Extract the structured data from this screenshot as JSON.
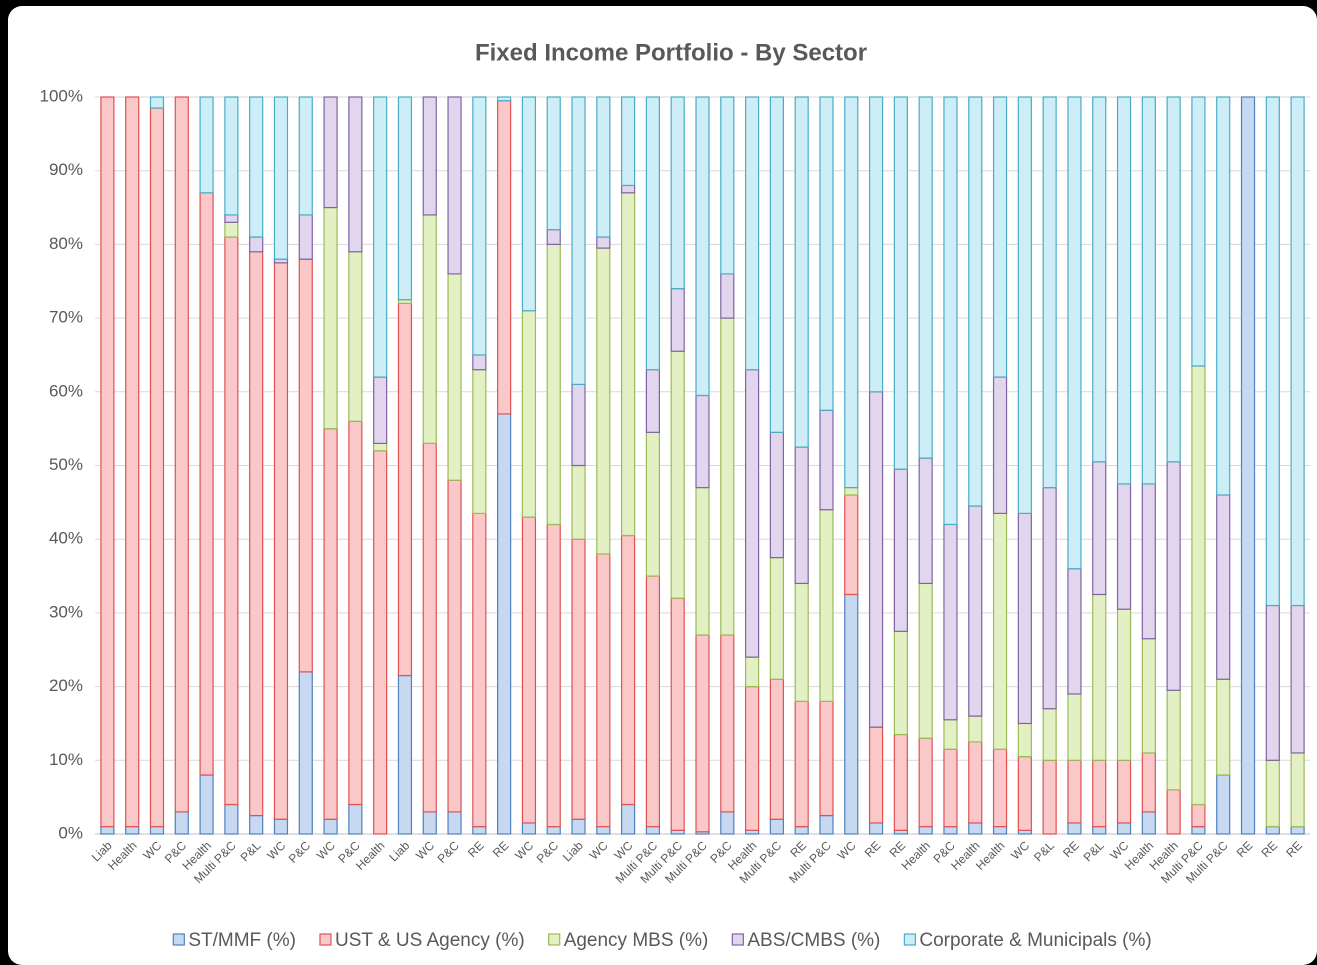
{
  "chart_data": {
    "type": "stacked_bar",
    "title": "Fixed Income Portfolio - By Sector",
    "categories": [
      "Liab",
      "Health",
      "WC",
      "P&C",
      "Health",
      "Multi P&C",
      "P&L",
      "WC",
      "P&C",
      "WC",
      "P&C",
      "Health",
      "Liab",
      "WC",
      "P&C",
      "RE",
      "RE",
      "WC",
      "P&C",
      "Liab",
      "WC",
      "WC",
      "Multi P&C",
      "Multi P&C",
      "Multi P&C",
      "P&C",
      "Health",
      "Multi P&C",
      "RE",
      "Multi P&C",
      "WC",
      "RE",
      "RE",
      "Health",
      "P&C",
      "Health",
      "Health",
      "WC",
      "P&L",
      "RE",
      "P&L",
      "WC",
      "Health",
      "Health",
      "Multi P&C",
      "Multi P&C",
      "RE",
      "RE",
      "RE"
    ],
    "series": [
      {
        "name": "ST/MMF (%)",
        "color": "#c6d9f1",
        "edgecolor": "#4f81bd",
        "values": [
          1,
          1,
          1,
          3,
          8,
          4,
          2.5,
          2,
          22,
          2,
          4,
          0,
          21.5,
          3,
          3,
          1,
          57,
          1.5,
          1,
          2,
          1,
          4,
          1,
          0.5,
          0.3,
          3,
          0.5,
          2,
          1,
          2.5,
          32.5,
          1.5,
          0.5,
          1,
          1,
          1.5,
          1,
          0.5,
          0,
          1.5,
          1,
          1.5,
          3,
          0,
          1,
          8,
          100,
          1,
          1
        ]
      },
      {
        "name": "UST & US Agency (%)",
        "color": "#fac8c8",
        "edgecolor": "#e05252",
        "values": [
          99,
          99,
          97.5,
          97,
          79,
          77,
          76.5,
          75.5,
          56,
          53,
          52,
          52,
          50.5,
          50,
          45,
          42.5,
          42.5,
          41.5,
          41,
          38,
          37,
          36.5,
          34,
          31.5,
          26.7,
          24,
          19.5,
          19,
          17,
          15.5,
          13.5,
          13,
          13,
          12,
          10.5,
          11,
          10.5,
          10,
          10,
          8.5,
          9,
          8.5,
          8,
          6,
          3,
          0,
          0,
          0,
          0
        ]
      },
      {
        "name": "Agency MBS (%)",
        "color": "#e3f0c4",
        "edgecolor": "#9bbb59",
        "values": [
          0,
          0,
          0,
          0,
          0,
          2,
          0,
          0,
          0,
          30,
          23,
          1,
          0.5,
          31,
          28,
          19.5,
          0,
          28,
          38,
          10,
          41.5,
          46.5,
          19.5,
          33.5,
          20,
          43,
          4,
          16.5,
          16,
          26,
          1,
          0,
          14,
          21,
          4,
          3.5,
          32,
          4.5,
          7,
          9,
          22.5,
          20.5,
          15.5,
          13.5,
          59.5,
          13,
          0,
          9,
          10
        ]
      },
      {
        "name": "ABS/CMBS (%)",
        "color": "#e2d6ef",
        "edgecolor": "#8064a2",
        "values": [
          0,
          0,
          0,
          0,
          0,
          1,
          2,
          0.5,
          6,
          15,
          21,
          9,
          0,
          16,
          24,
          2,
          0,
          0,
          2,
          11,
          1.5,
          1,
          8.5,
          8.5,
          12.5,
          6,
          39,
          17,
          18.5,
          13.5,
          0,
          45.5,
          22,
          17,
          26.5,
          28.5,
          18.5,
          28.5,
          30,
          17,
          18,
          17,
          21,
          31,
          0,
          25,
          0,
          21,
          20
        ]
      },
      {
        "name": "Corporate & Municipals (%)",
        "color": "#cdeef6",
        "edgecolor": "#4bacc6",
        "values": [
          0,
          0,
          1.5,
          0,
          13,
          16,
          19,
          22,
          16,
          0,
          0,
          38,
          27.5,
          0,
          0,
          35,
          0.5,
          29,
          18,
          39,
          19,
          12,
          37,
          26,
          40.5,
          24,
          37,
          45.5,
          47.5,
          42.5,
          53,
          40,
          50.5,
          49,
          58,
          55.5,
          38,
          56.5,
          53,
          64,
          49.5,
          52.5,
          52.5,
          49.5,
          36.5,
          54,
          0,
          69,
          69
        ]
      }
    ],
    "ylim": [
      0,
      100
    ],
    "yticks": [
      {
        "value": 0,
        "label": "0%"
      },
      {
        "value": 10,
        "label": "10%"
      },
      {
        "value": 20,
        "label": "20%"
      },
      {
        "value": 30,
        "label": "30%"
      },
      {
        "value": 40,
        "label": "40%"
      },
      {
        "value": 50,
        "label": "50%"
      },
      {
        "value": 60,
        "label": "60%"
      },
      {
        "value": 70,
        "label": "70%"
      },
      {
        "value": 80,
        "label": "80%"
      },
      {
        "value": 90,
        "label": "90%"
      },
      {
        "value": 100,
        "label": "100%"
      }
    ],
    "grid": true,
    "legend": "bottom"
  }
}
